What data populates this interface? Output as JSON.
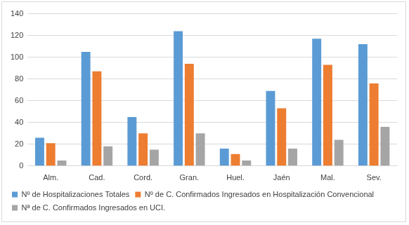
{
  "chart_data": {
    "type": "bar",
    "categories": [
      "Alm.",
      "Cad.",
      "Cord.",
      "Gran.",
      "Huel.",
      "Jaén",
      "Mal.",
      "Sev."
    ],
    "series": [
      {
        "name": "Nº de Hospitalizaciones Totales",
        "color": "#5b9bd5",
        "values": [
          26,
          105,
          45,
          124,
          16,
          69,
          117,
          112
        ]
      },
      {
        "name": "Nº de C. Confirmados Ingresados en Hospitalización Convencional",
        "color": "#ed7d31",
        "values": [
          21,
          87,
          30,
          94,
          11,
          53,
          93,
          76
        ]
      },
      {
        "name": "Nª de C. Confirmados Ingresados en UCI.",
        "color": "#a5a5a5",
        "values": [
          5,
          18,
          15,
          30,
          5,
          16,
          24,
          36
        ]
      }
    ],
    "ylim": [
      0,
      140
    ],
    "yticks": [
      0,
      20,
      40,
      60,
      80,
      100,
      120,
      140
    ],
    "grid": true,
    "legend": "bottom"
  }
}
